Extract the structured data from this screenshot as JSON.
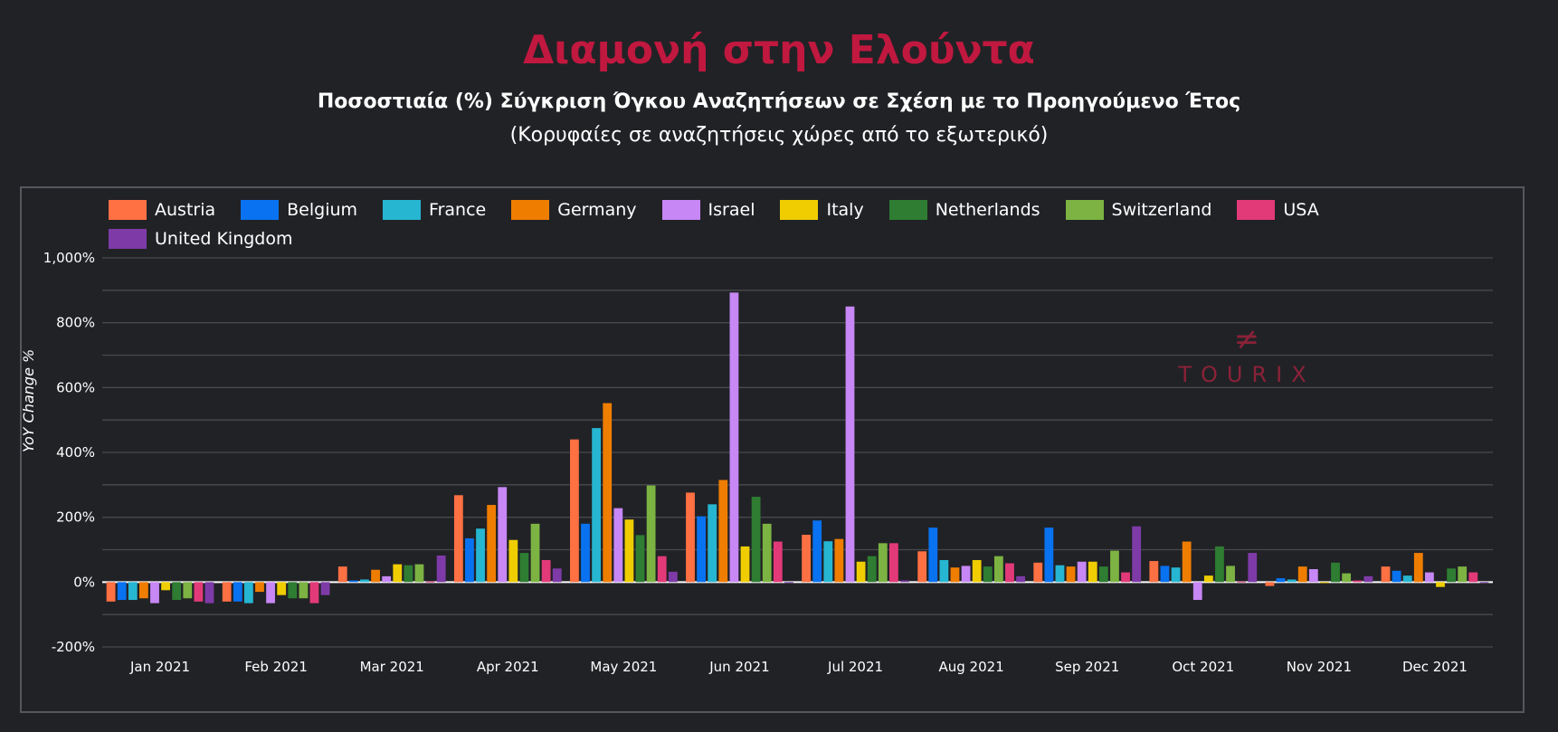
{
  "header": {
    "title": "Διαμονή στην Ελούντα",
    "subtitle": "Ποσοστιαία (%) Σύγκριση Όγκου Αναζητήσεων σε Σχέση με το Προηγούμενο Έτος",
    "subtitle2": "(Κορυφαίες σε αναζητήσεις χώρες από το εξωτερικό)"
  },
  "logo": {
    "text": "TOURIX"
  },
  "chart_data": {
    "type": "bar",
    "title": "Διαμονή στην Ελούντα",
    "xlabel": "",
    "ylabel": "YoY Change %",
    "ylim": [
      -200,
      1000
    ],
    "yticks": [
      -200,
      0,
      200,
      400,
      600,
      800,
      1000
    ],
    "ytick_labels": [
      "-200%",
      "0%",
      "200%",
      "400%",
      "600%",
      "800%",
      "1,000%"
    ],
    "grid": true,
    "legend_position": "top-left",
    "categories": [
      "Jan 2021",
      "Feb 2021",
      "Mar 2021",
      "Apr 2021",
      "May 2021",
      "Jun 2021",
      "Jul 2021",
      "Aug 2021",
      "Sep 2021",
      "Oct 2021",
      "Nov 2021",
      "Dec 2021"
    ],
    "series": [
      {
        "name": "Austria",
        "color": "#ff7043",
        "values": [
          -60,
          -60,
          48,
          268,
          440,
          276,
          146,
          95,
          60,
          65,
          -12,
          48
        ]
      },
      {
        "name": "Belgium",
        "color": "#0872f0",
        "values": [
          -55,
          -60,
          5,
          135,
          180,
          203,
          190,
          168,
          168,
          50,
          12,
          35
        ]
      },
      {
        "name": "France",
        "color": "#26b6d2",
        "values": [
          -55,
          -65,
          8,
          165,
          475,
          240,
          126,
          68,
          52,
          45,
          8,
          20
        ]
      },
      {
        "name": "Germany",
        "color": "#ef7d00",
        "values": [
          -50,
          -30,
          38,
          238,
          552,
          315,
          133,
          45,
          48,
          125,
          48,
          90
        ]
      },
      {
        "name": "Israel",
        "color": "#c787f5",
        "values": [
          -65,
          -65,
          18,
          293,
          228,
          893,
          850,
          50,
          63,
          -55,
          40,
          30
        ]
      },
      {
        "name": "Italy",
        "color": "#efcd00",
        "values": [
          -25,
          -40,
          55,
          130,
          193,
          110,
          63,
          68,
          63,
          20,
          -3,
          -15
        ]
      },
      {
        "name": "Netherlands",
        "color": "#2e7d32",
        "values": [
          -55,
          -50,
          52,
          90,
          145,
          263,
          80,
          48,
          48,
          110,
          60,
          42
        ]
      },
      {
        "name": "Switzerland",
        "color": "#7cb342",
        "values": [
          -50,
          -50,
          55,
          180,
          298,
          180,
          120,
          80,
          97,
          50,
          27,
          48
        ]
      },
      {
        "name": "USA",
        "color": "#e23a78",
        "values": [
          -60,
          -65,
          2,
          68,
          80,
          125,
          120,
          58,
          30,
          2,
          5,
          30
        ]
      },
      {
        "name": "United Kingdom",
        "color": "#7e3ba8",
        "values": [
          -65,
          -40,
          82,
          42,
          32,
          0,
          5,
          18,
          172,
          90,
          18,
          0
        ]
      }
    ]
  }
}
